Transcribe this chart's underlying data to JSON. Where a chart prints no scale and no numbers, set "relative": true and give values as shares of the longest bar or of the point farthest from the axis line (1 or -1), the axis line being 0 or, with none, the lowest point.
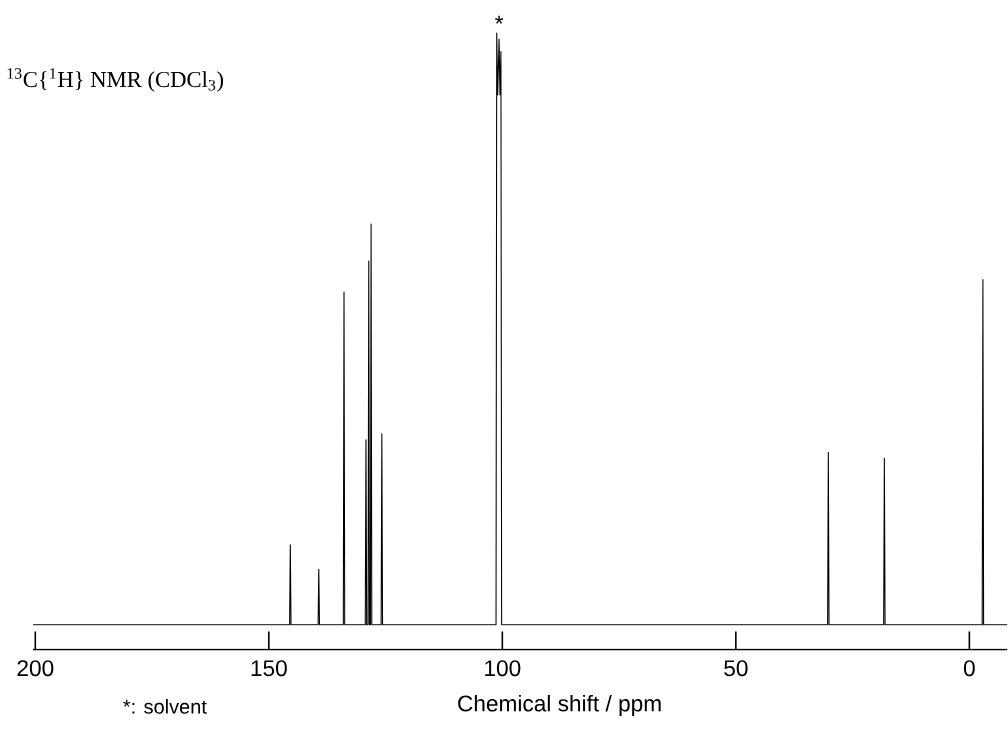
{
  "chart_data": {
    "type": "line",
    "relative": true,
    "title": "$^{13}$C{$^{1}$H} NMR (CDCl$_{3}$)",
    "xlabel": "Chemical shift / ppm",
    "xlim": [
      200.5,
      -8.1
    ],
    "xticks": [
      200,
      150,
      100,
      50,
      0
    ],
    "x": [
      200.5,
      145.55,
      145.4,
      145.25,
      139.45,
      139.3,
      139.15,
      134.05,
      133.9,
      133.75,
      129.35,
      129.2,
      129.05,
      128.75,
      128.6,
      128.45,
      128.25,
      128.1,
      127.95,
      125.95,
      125.8,
      125.65,
      101.35,
      101.2,
      101.0,
      100.7,
      100.5,
      100.3,
      100.15,
      30.35,
      30.2,
      30.05,
      18.35,
      18.2,
      18.05,
      -2.75,
      -2.9,
      -3.05,
      -8.1
    ],
    "values": [
      0.04,
      0.04,
      0.17,
      0.04,
      0.04,
      0.13,
      0.04,
      0.04,
      0.58,
      0.04,
      0.04,
      0.34,
      0.04,
      0.04,
      0.63,
      0.04,
      0.04,
      0.69,
      0.04,
      0.04,
      0.35,
      0.04,
      0.04,
      1.0,
      0.9,
      0.99,
      0.9,
      0.97,
      0.04,
      0.04,
      0.32,
      0.04,
      0.04,
      0.31,
      0.04,
      0.04,
      0.6,
      0.04,
      0.04
    ],
    "color": "#000000",
    "line_style": "solid",
    "marker": "none",
    "annotations": [
      {
        "text": "*",
        "x": 100.7,
        "y": 1.0
      },
      "*: solvent"
    ]
  }
}
